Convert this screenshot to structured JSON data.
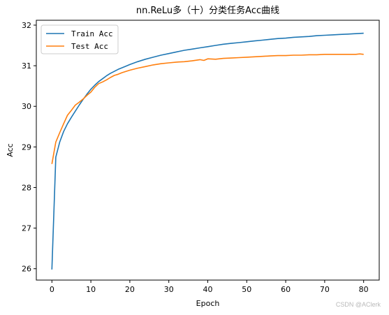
{
  "chart_data": {
    "type": "line",
    "title": "nn.ReLu多（十）分类任务Acc曲线",
    "xlabel": "Epoch",
    "ylabel": "Acc",
    "xlim": [
      -4,
      84
    ],
    "ylim": [
      25.72,
      32.12
    ],
    "xticks": [
      0,
      10,
      20,
      30,
      40,
      50,
      60,
      70,
      80
    ],
    "yticks": [
      26,
      27,
      28,
      29,
      30,
      31,
      32
    ],
    "grid": false,
    "legend_position": "top-left",
    "series": [
      {
        "name": "Train Acc",
        "color": "#1f77b4",
        "x": [
          0,
          1,
          2,
          3,
          4,
          5,
          6,
          7,
          8,
          9,
          10,
          11,
          12,
          13,
          14,
          15,
          16,
          17,
          18,
          19,
          20,
          22,
          24,
          26,
          28,
          30,
          32,
          34,
          36,
          38,
          40,
          42,
          44,
          46,
          48,
          50,
          52,
          54,
          56,
          58,
          60,
          62,
          64,
          66,
          68,
          70,
          72,
          74,
          76,
          78,
          80
        ],
        "values": [
          25.98,
          28.75,
          29.12,
          29.38,
          29.57,
          29.73,
          29.88,
          30.03,
          30.17,
          30.3,
          30.42,
          30.52,
          30.61,
          30.68,
          30.75,
          30.81,
          30.86,
          30.91,
          30.95,
          30.99,
          31.03,
          31.1,
          31.16,
          31.21,
          31.26,
          31.3,
          31.34,
          31.38,
          31.41,
          31.44,
          31.47,
          31.5,
          31.53,
          31.55,
          31.57,
          31.59,
          31.61,
          31.63,
          31.65,
          31.67,
          31.68,
          31.7,
          31.71,
          31.72,
          31.74,
          31.75,
          31.76,
          31.77,
          31.78,
          31.79,
          31.8
        ]
      },
      {
        "name": "Test Acc",
        "color": "#ff7f0e",
        "x": [
          0,
          1,
          2,
          3,
          4,
          5,
          6,
          7,
          8,
          9,
          10,
          11,
          12,
          13,
          14,
          15,
          16,
          17,
          18,
          19,
          20,
          22,
          24,
          26,
          28,
          30,
          32,
          34,
          36,
          38,
          39,
          40,
          42,
          44,
          46,
          48,
          50,
          52,
          54,
          56,
          58,
          60,
          62,
          64,
          66,
          68,
          70,
          72,
          74,
          76,
          78,
          79,
          80
        ],
        "values": [
          28.58,
          29.12,
          29.35,
          29.57,
          29.78,
          29.9,
          30.03,
          30.1,
          30.18,
          30.27,
          30.35,
          30.47,
          30.56,
          30.6,
          30.65,
          30.71,
          30.76,
          30.79,
          30.83,
          30.86,
          30.89,
          30.94,
          30.98,
          31.02,
          31.05,
          31.07,
          31.09,
          31.1,
          31.12,
          31.15,
          31.13,
          31.17,
          31.16,
          31.18,
          31.19,
          31.2,
          31.21,
          31.22,
          31.23,
          31.24,
          31.25,
          31.25,
          31.26,
          31.26,
          31.27,
          31.27,
          31.28,
          31.28,
          31.28,
          31.28,
          31.28,
          31.29,
          31.28
        ]
      }
    ]
  },
  "watermark": "CSDN @AClerk"
}
